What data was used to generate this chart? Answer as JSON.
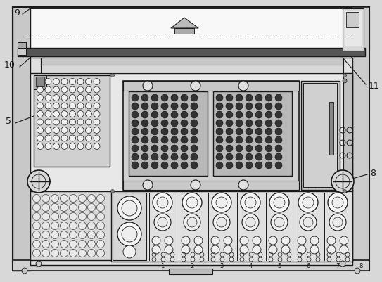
{
  "bg_color": "#d8d8d8",
  "white": "#ffffff",
  "light_gray": "#f0f0f0",
  "mid_gray": "#c8c8c8",
  "dark_gray": "#888888",
  "very_dark": "#222222",
  "line_color": "#1a1a1a",
  "figsize": [
    5.43,
    4.01
  ],
  "dpi": 100
}
